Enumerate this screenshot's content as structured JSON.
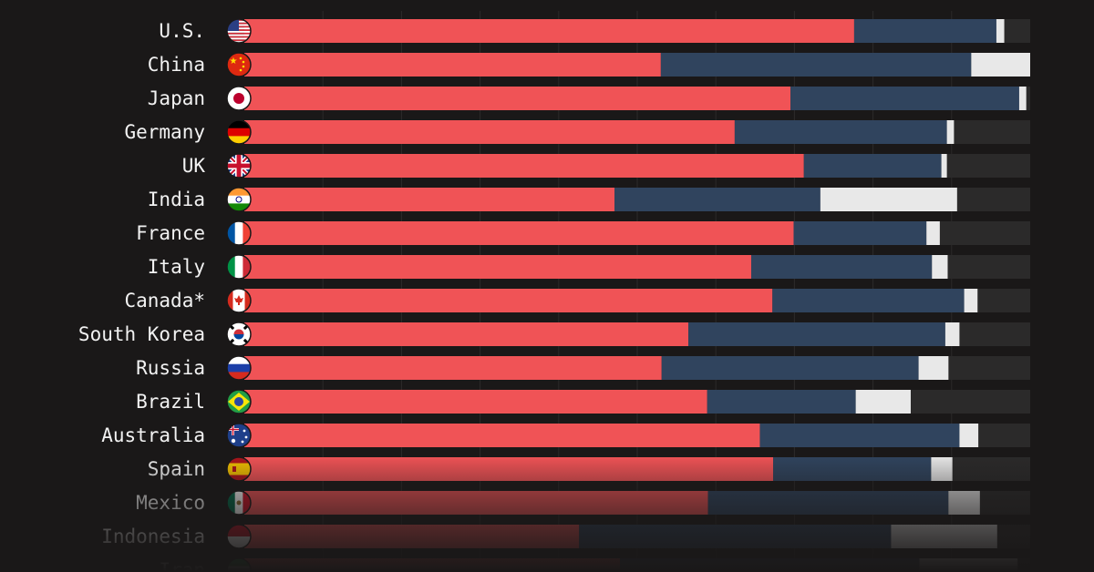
{
  "chart_data": {
    "type": "bar",
    "stacked": true,
    "orientation": "horizontal",
    "xlim": [
      0,
      100
    ],
    "gridlines": true,
    "colors": {
      "segment_1": "#f05356",
      "segment_2": "#30445e",
      "segment_3": "#e8e8e8",
      "remainder": "#2b2a2a",
      "label": "#f2f2f2"
    },
    "rows": [
      {
        "country": "U.S.",
        "flag": "us-flag",
        "segments": [
          77.6,
          18.1,
          1.0
        ]
      },
      {
        "country": "China",
        "flag": "china-flag",
        "segments": [
          53.0,
          39.5,
          7.5
        ]
      },
      {
        "country": "Japan",
        "flag": "japan-flag",
        "segments": [
          69.5,
          29.1,
          0.9
        ]
      },
      {
        "country": "Germany",
        "flag": "germany-flag",
        "segments": [
          62.4,
          27.0,
          0.9
        ]
      },
      {
        "country": "UK",
        "flag": "uk-flag",
        "segments": [
          71.2,
          17.5,
          0.7
        ]
      },
      {
        "country": "India",
        "flag": "india-flag",
        "segments": [
          47.1,
          26.2,
          17.4
        ]
      },
      {
        "country": "France",
        "flag": "france-flag",
        "segments": [
          69.9,
          16.9,
          1.7
        ]
      },
      {
        "country": "Italy",
        "flag": "italy-flag",
        "segments": [
          64.5,
          23.0,
          2.0
        ]
      },
      {
        "country": "Canada*",
        "flag": "canada-flag",
        "segments": [
          67.2,
          24.4,
          1.7
        ]
      },
      {
        "country": "South Korea",
        "flag": "south-korea-flag",
        "segments": [
          56.5,
          32.7,
          1.8
        ]
      },
      {
        "country": "Russia",
        "flag": "russia-flag",
        "segments": [
          53.1,
          32.7,
          3.8
        ]
      },
      {
        "country": "Brazil",
        "flag": "brazil-flag",
        "segments": [
          58.9,
          18.9,
          7.0
        ]
      },
      {
        "country": "Australia",
        "flag": "australia-flag",
        "segments": [
          65.6,
          25.4,
          2.4
        ]
      },
      {
        "country": "Spain",
        "flag": "spain-flag",
        "segments": [
          67.3,
          20.1,
          2.7
        ]
      },
      {
        "country": "Mexico",
        "flag": "mexico-flag",
        "segments": [
          59.0,
          30.6,
          4.0
        ]
      },
      {
        "country": "Indonesia",
        "flag": "indonesia-flag",
        "segments": [
          42.6,
          39.7,
          13.5
        ]
      },
      {
        "country": "Iran",
        "flag": "iran-flag",
        "segments": [
          47.8,
          38.1,
          12.5
        ]
      }
    ]
  }
}
